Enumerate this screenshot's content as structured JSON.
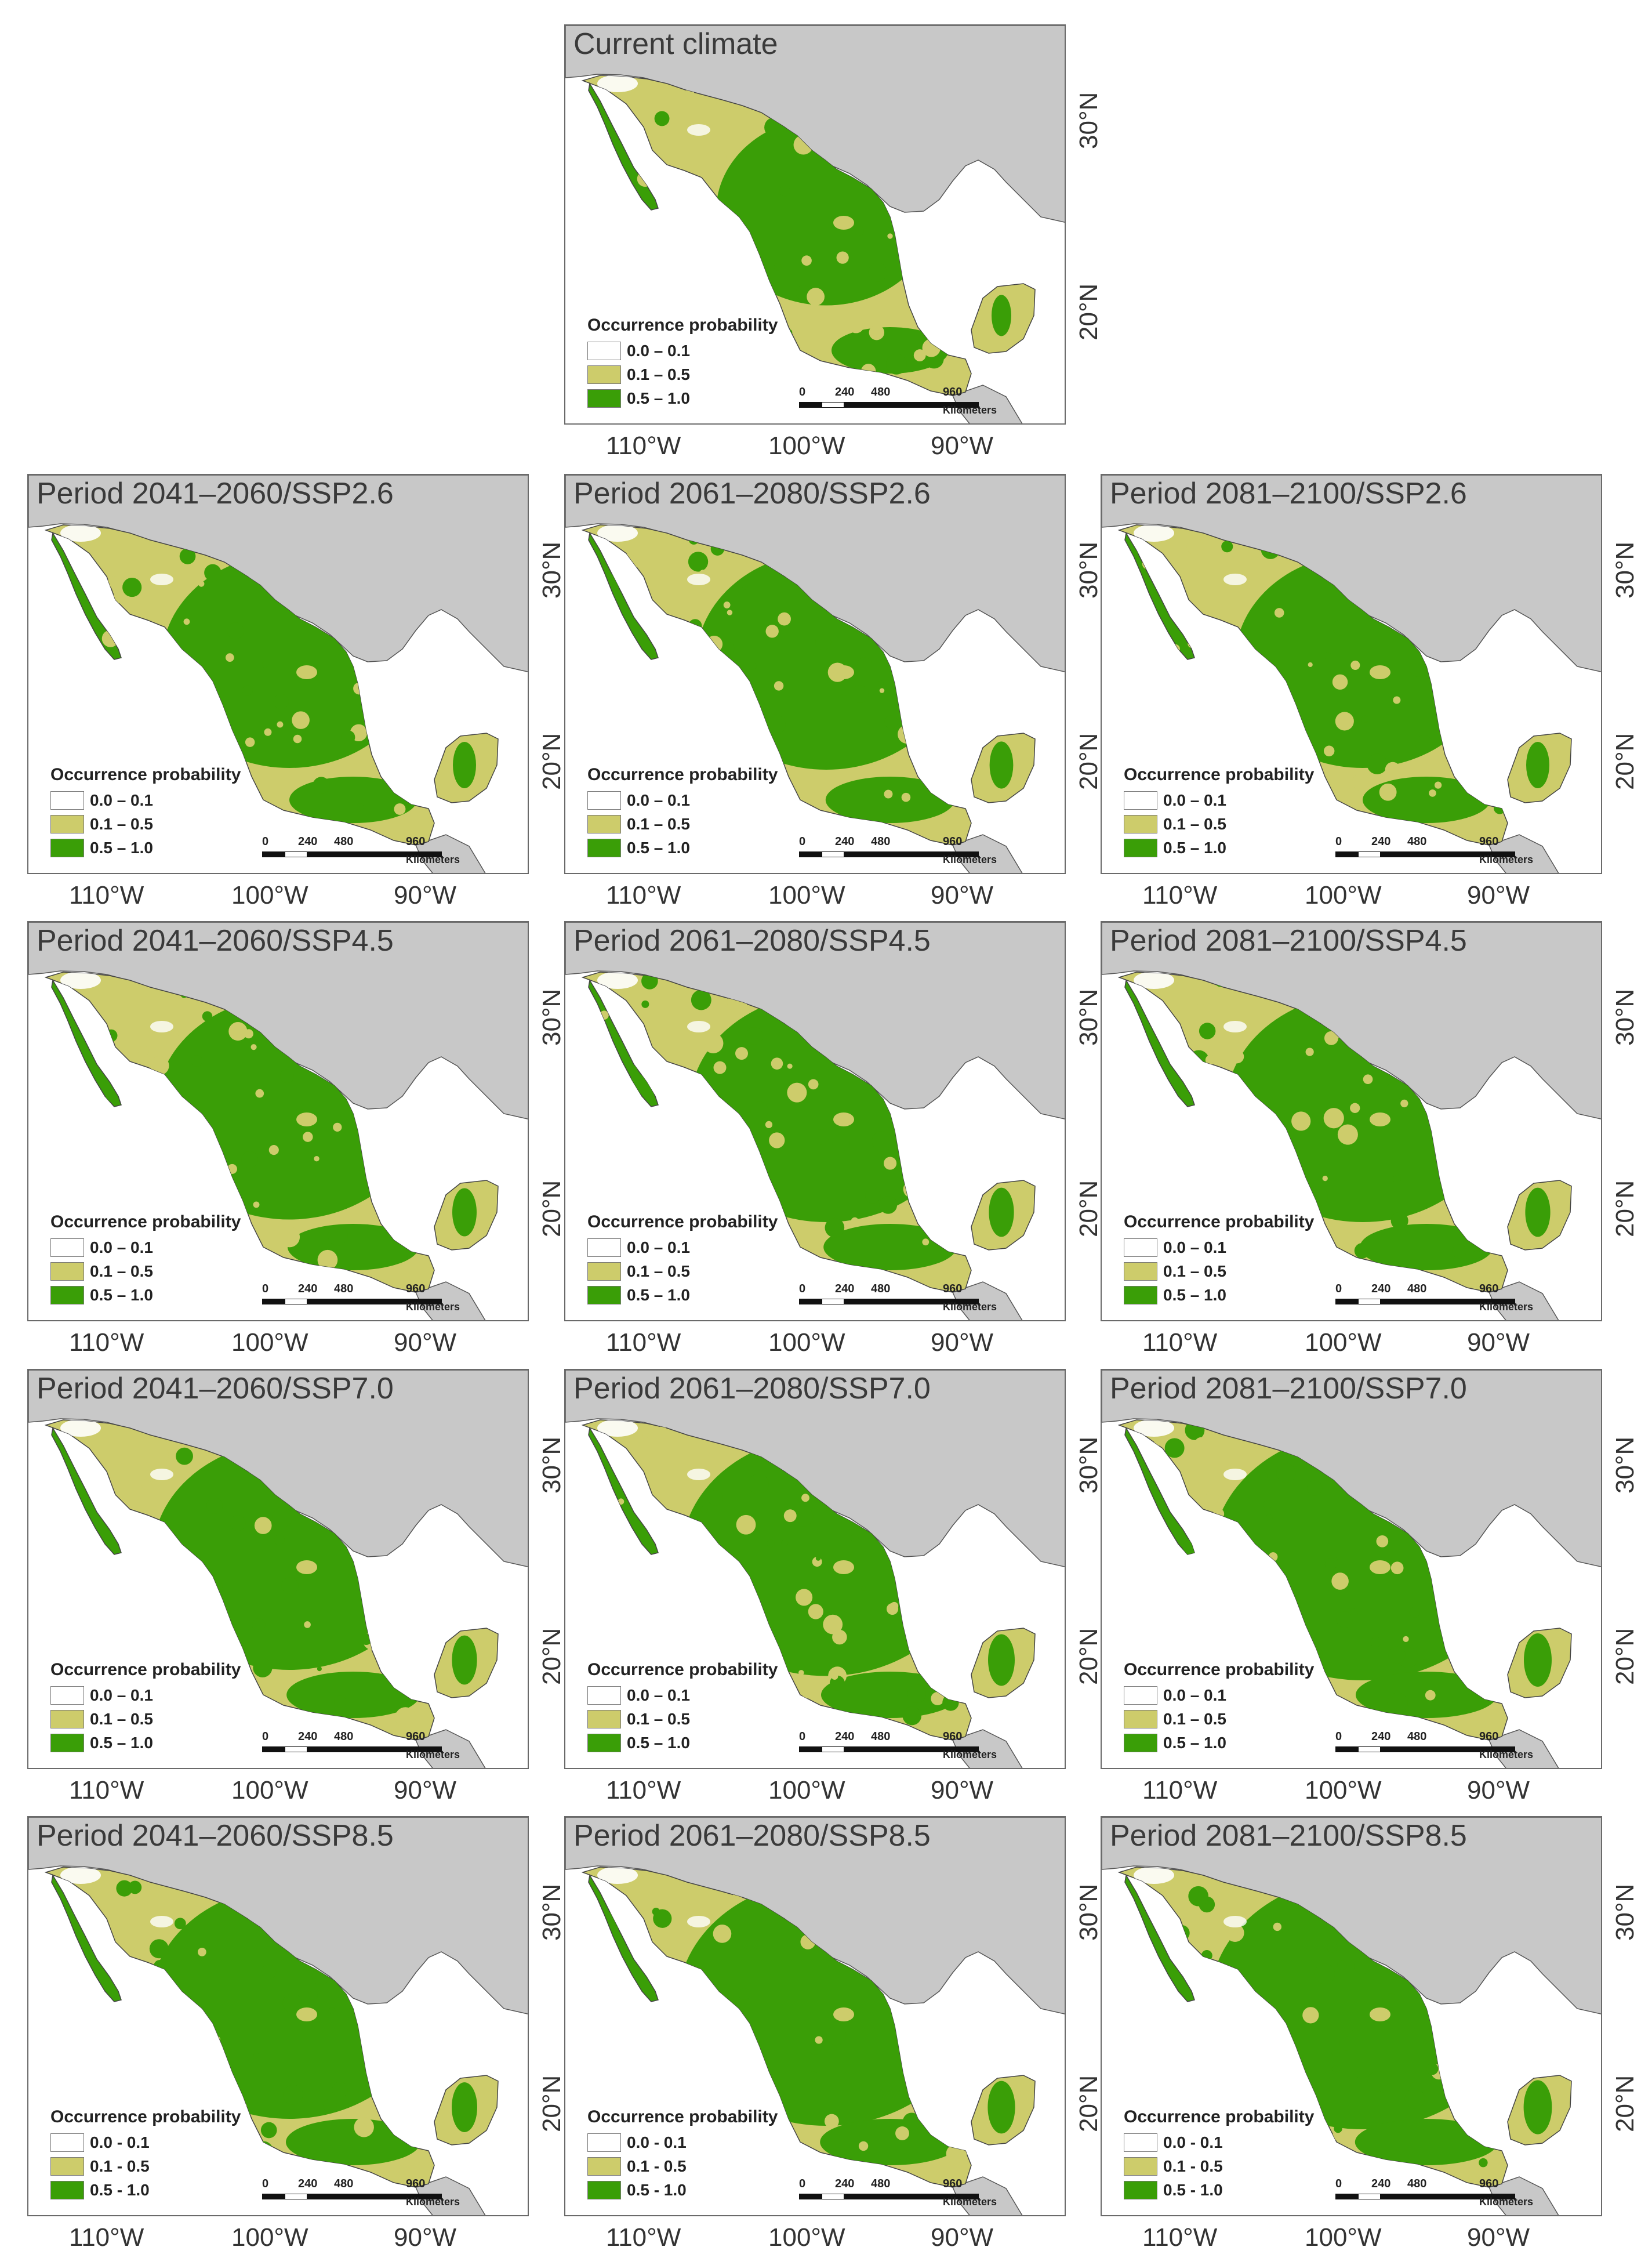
{
  "legend": {
    "title": "Occurrence probability",
    "classes": [
      {
        "label": "0.0 – 0.1",
        "color": "#ffffff"
      },
      {
        "label": "0.1 – 0.5",
        "color": "#cdcc6b"
      },
      {
        "label": "0.5 – 1.0",
        "color": "#3a9e07"
      }
    ],
    "classes_alt": [
      {
        "label": "0.0 - 0.1",
        "color": "#ffffff"
      },
      {
        "label": "0.1 - 0.5",
        "color": "#cdcc6b"
      },
      {
        "label": "0.5 - 1.0",
        "color": "#3a9e07"
      }
    ]
  },
  "scale_bar": {
    "ticks": [
      "0",
      "240",
      "480",
      "960"
    ],
    "unit": "Kilometers"
  },
  "axes": {
    "lon_labels": [
      "110°W",
      "100°W",
      "90°W"
    ],
    "lat_labels": [
      "30°N",
      "20°N"
    ]
  },
  "colors": {
    "land_outside": "#c8c8c8",
    "low": "#ffffff",
    "mid": "#cdcc6b",
    "high": "#3a9e07",
    "frame": "#6a6a6a"
  },
  "panels": [
    {
      "title": "Current climate",
      "alt_legend": false,
      "high_share": 0.35
    },
    {
      "title": "Period 2041–2060/SSP2.6",
      "alt_legend": false,
      "high_share": 0.5
    },
    {
      "title": "Period 2061–2080/SSP2.6",
      "alt_legend": false,
      "high_share": 0.52
    },
    {
      "title": "Period 2081–2100/SSP2.6",
      "alt_legend": false,
      "high_share": 0.5
    },
    {
      "title": "Period 2041–2060/SSP4.5",
      "alt_legend": false,
      "high_share": 0.55
    },
    {
      "title": "Period 2061–2080/SSP4.5",
      "alt_legend": false,
      "high_share": 0.58
    },
    {
      "title": "Period 2081–2100/SSP4.5",
      "alt_legend": false,
      "high_share": 0.58
    },
    {
      "title": "Period 2041–2060/SSP7.0",
      "alt_legend": false,
      "high_share": 0.58
    },
    {
      "title": "Period 2061–2080/SSP7.0",
      "alt_legend": false,
      "high_share": 0.65
    },
    {
      "title": "Period 2081–2100/SSP7.0",
      "alt_legend": false,
      "high_share": 0.7
    },
    {
      "title": "Period 2041–2060/SSP8.5",
      "alt_legend": true,
      "high_share": 0.6
    },
    {
      "title": "Period 2061–2080/SSP8.5",
      "alt_legend": true,
      "high_share": 0.68
    },
    {
      "title": "Period 2081–2100/SSP8.5",
      "alt_legend": true,
      "high_share": 0.72
    }
  ]
}
